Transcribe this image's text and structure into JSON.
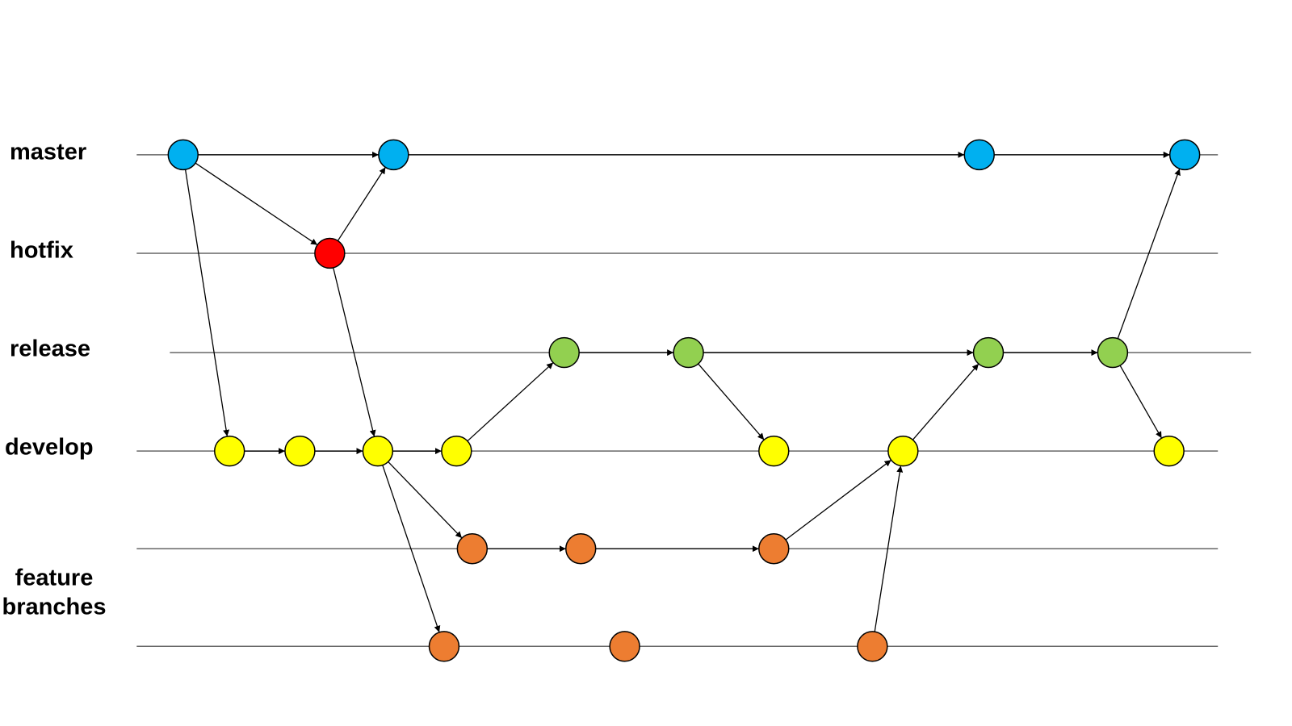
{
  "labels": {
    "master": "master",
    "hotfix": "hotfix",
    "release": "release",
    "develop": "develop",
    "feature_branches": [
      "feature",
      "branches"
    ]
  }
}
